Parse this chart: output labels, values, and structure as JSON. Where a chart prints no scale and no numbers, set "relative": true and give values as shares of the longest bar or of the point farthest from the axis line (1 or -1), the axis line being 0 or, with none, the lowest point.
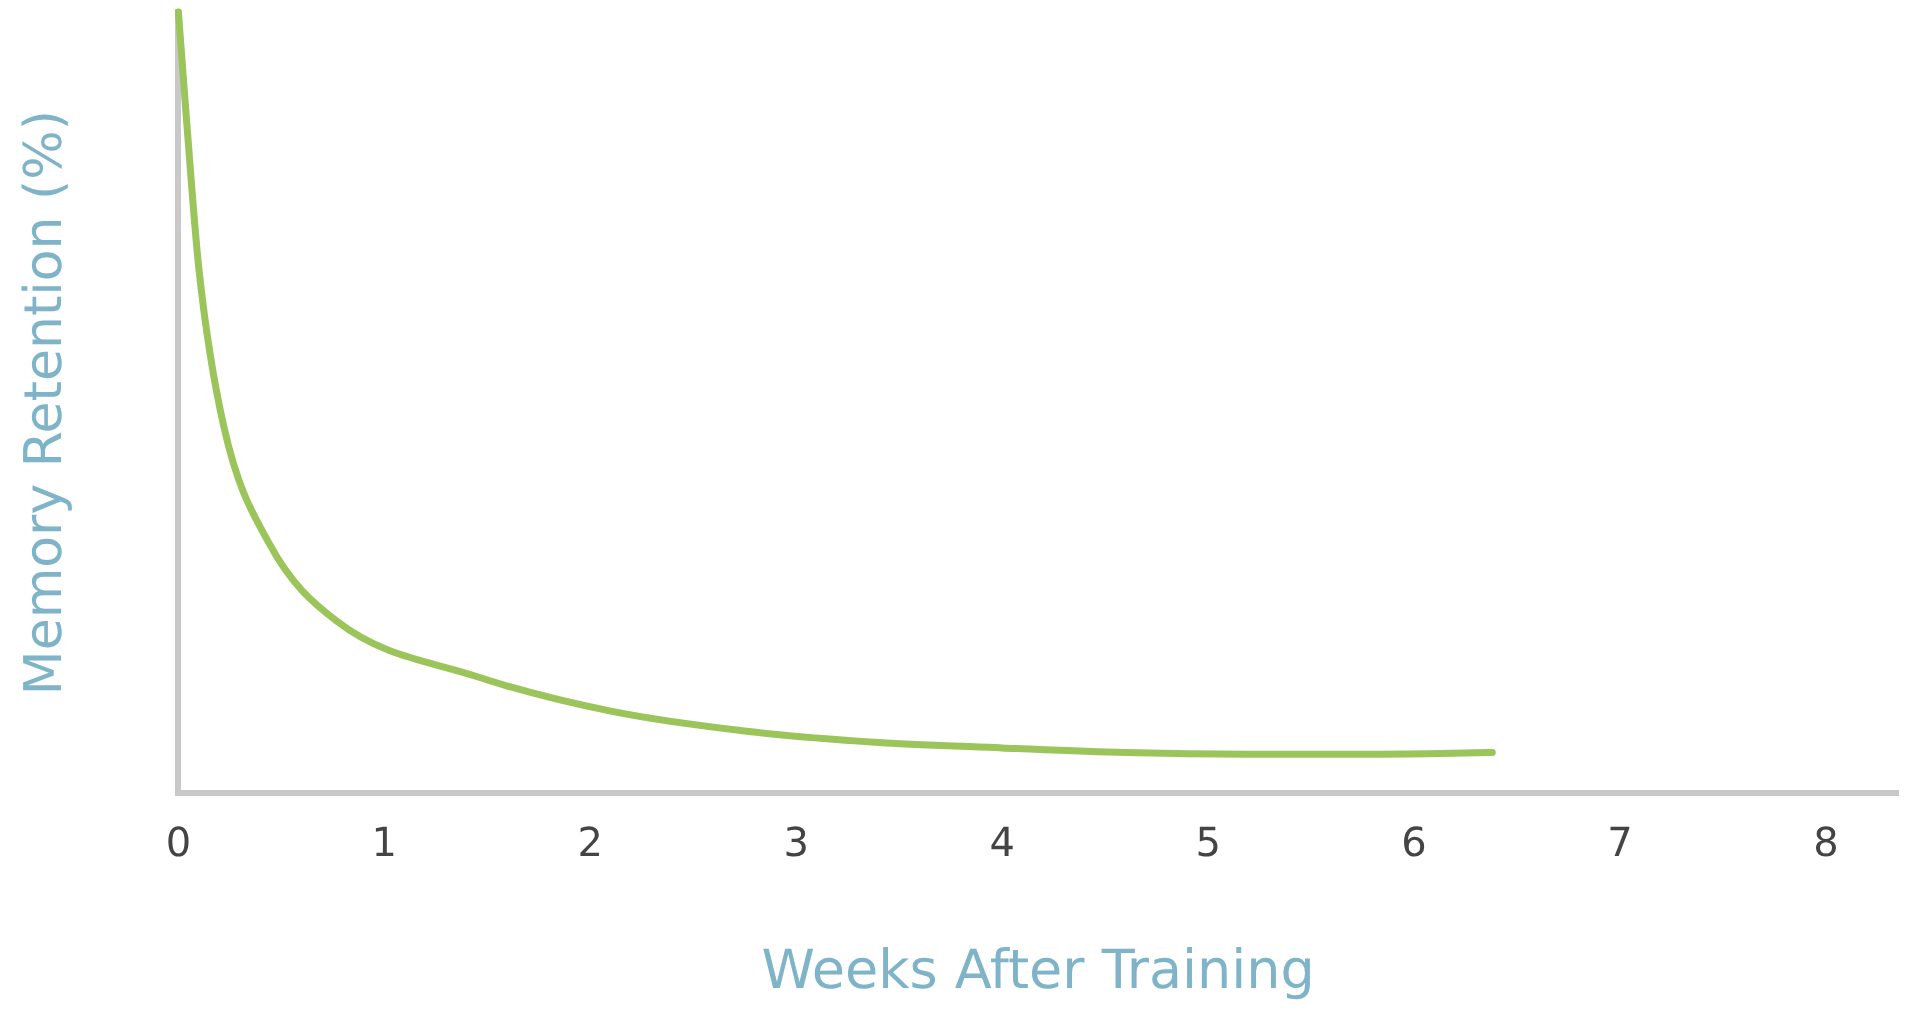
{
  "chart_data": {
    "type": "line",
    "xlabel": "Weeks After Training",
    "ylabel": "Memory Retention (%)",
    "relative": true,
    "xlim": [
      0,
      8.35
    ],
    "xticks": [
      0,
      1,
      2,
      3,
      4,
      5,
      6,
      7,
      8
    ],
    "grid": false,
    "legend": false,
    "marker": "none",
    "line_style": "solid",
    "series": [
      {
        "color": "#9bc45a",
        "x": [
          0,
          0.04,
          0.1,
          0.22,
          0.44,
          0.77,
          1.44,
          2.1,
          2.77,
          3.4,
          4,
          4.6,
          5.2,
          5.8,
          6.38
        ],
        "values": [
          1,
          0.86,
          0.67,
          0.47,
          0.32,
          0.22,
          0.15,
          0.105,
          0.079,
          0.065,
          0.058,
          0.052,
          0.05,
          0.05,
          0.052
        ]
      }
    ]
  }
}
